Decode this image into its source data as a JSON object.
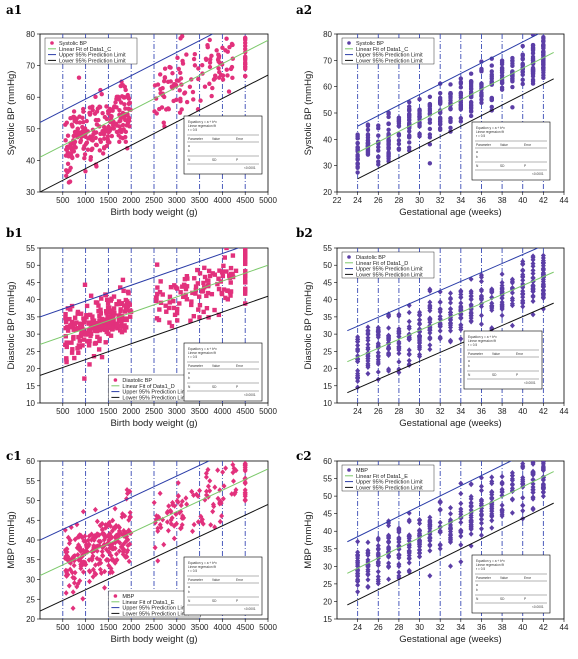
{
  "panel_labels": [
    "a1",
    "a2",
    "b1",
    "b2",
    "c1",
    "c2"
  ],
  "stats_text": {
    "line1": "Equation y = a + b*x",
    "line2": "Linear regression fit",
    "line3": "r = 0.5",
    "row_header": [
      "Parameter",
      "Value",
      "Error"
    ],
    "row_a": [
      "a",
      "",
      "",
      ""
    ],
    "row_b": [
      "b",
      "",
      "",
      ""
    ],
    "row_n": [
      "N",
      "SD",
      "P"
    ],
    "row_vals": [
      "",
      "",
      "<0.0001"
    ]
  },
  "chart_data": [
    {
      "id": "a1",
      "type": "scatter",
      "xlabel": "Birth body weight (g)",
      "ylabel": "Systolic BP (mmHg)",
      "xlim": [
        0,
        5000
      ],
      "ylim": [
        30,
        80
      ],
      "xticks": [
        500,
        1000,
        1500,
        2000,
        2500,
        3000,
        3500,
        4000,
        4500,
        5000
      ],
      "yticks": [
        30,
        40,
        50,
        60,
        70,
        80
      ],
      "series": [
        {
          "name": "Systolic BP",
          "role": "points",
          "marker": "circle"
        },
        {
          "name": "Linear Fit of Data1_C",
          "role": "fit",
          "line": [
            [
              0,
              41
            ],
            [
              5000,
              78
            ]
          ]
        },
        {
          "name": "Upper 95% Prediction Limit",
          "role": "upper",
          "line": [
            [
              0,
              52
            ],
            [
              5000,
              89
            ]
          ]
        },
        {
          "name": "Lower 95% Prediction Limit",
          "role": "lower",
          "line": [
            [
              0,
              30
            ],
            [
              5000,
              67
            ]
          ]
        }
      ],
      "legend": "top-left",
      "vlines": [
        500,
        1000,
        1500,
        2000,
        2500,
        3000,
        3500,
        4000,
        4500
      ]
    },
    {
      "id": "a2",
      "type": "scatter",
      "xlabel": "Gestational age (weeks)",
      "ylabel": "Systolic BP (mmHg)",
      "xlim": [
        22,
        44
      ],
      "ylim": [
        20,
        80
      ],
      "xticks": [
        22,
        24,
        26,
        28,
        30,
        32,
        34,
        36,
        38,
        40,
        42,
        44
      ],
      "yticks": [
        20,
        30,
        40,
        50,
        60,
        70,
        80
      ],
      "series": [
        {
          "name": "Systolic BP",
          "role": "points",
          "marker": "circle"
        },
        {
          "name": "Linear Fit of Data1_C",
          "role": "fit",
          "line": [
            [
              24,
              35
            ],
            [
              43,
              73
            ]
          ]
        },
        {
          "name": "Upper 95% Prediction Limit",
          "role": "upper",
          "line": [
            [
              24,
              45
            ],
            [
              43,
              83
            ]
          ]
        },
        {
          "name": "Lower 95% Prediction Limit",
          "role": "lower",
          "line": [
            [
              24,
              25
            ],
            [
              43,
              63
            ]
          ]
        }
      ],
      "legend": "top-left",
      "vlines": [
        24,
        26,
        28,
        30,
        32,
        34,
        36,
        38,
        40,
        42
      ]
    },
    {
      "id": "b1",
      "type": "scatter",
      "xlabel": "Birth body weight (g)",
      "ylabel": "Diastolic BP (mmHg)",
      "xlim": [
        0,
        5000
      ],
      "ylim": [
        10,
        55
      ],
      "xticks": [
        500,
        1000,
        1500,
        2000,
        2500,
        3000,
        3500,
        4000,
        4500,
        5000
      ],
      "yticks": [
        10,
        15,
        20,
        25,
        30,
        35,
        40,
        45,
        50,
        55
      ],
      "series": [
        {
          "name": "Diastolic BP",
          "role": "points",
          "marker": "square"
        },
        {
          "name": "Linear Fit of Data1_D",
          "role": "fit",
          "line": [
            [
              0,
              27
            ],
            [
              5000,
              50
            ]
          ]
        },
        {
          "name": "Upper 95% Prediction Limit",
          "role": "upper",
          "line": [
            [
              0,
              35
            ],
            [
              5000,
              58
            ]
          ]
        },
        {
          "name": "Lower 95% Prediction Limit",
          "role": "lower",
          "line": [
            [
              0,
              18
            ],
            [
              5000,
              41
            ]
          ]
        }
      ],
      "legend": "bottom",
      "vlines": [
        500,
        1000,
        1500,
        2000,
        2500,
        3000,
        3500,
        4000,
        4500
      ]
    },
    {
      "id": "b2",
      "type": "scatter",
      "xlabel": "Gestational age (weeks)",
      "ylabel": "Diastolic BP (mmHg)",
      "xlim": [
        22,
        44
      ],
      "ylim": [
        10,
        55
      ],
      "xticks": [
        24,
        26,
        28,
        30,
        32,
        34,
        36,
        38,
        40,
        42,
        44
      ],
      "yticks": [
        10,
        15,
        20,
        25,
        30,
        35,
        40,
        45,
        50,
        55
      ],
      "series": [
        {
          "name": "Diastolic BP",
          "role": "points",
          "marker": "diamond"
        },
        {
          "name": "Linear Fit of Data1_D",
          "role": "fit",
          "line": [
            [
              23,
              22
            ],
            [
              43,
              48
            ]
          ]
        },
        {
          "name": "Upper 95% Prediction Limit",
          "role": "upper",
          "line": [
            [
              23,
              31
            ],
            [
              43,
              57
            ]
          ]
        },
        {
          "name": "Lower 95% Prediction Limit",
          "role": "lower",
          "line": [
            [
              23,
              13
            ],
            [
              43,
              39
            ]
          ]
        }
      ],
      "legend": "top-left",
      "vlines": [
        24,
        26,
        28,
        30,
        32,
        34,
        36,
        38,
        40,
        42
      ]
    },
    {
      "id": "c1",
      "type": "scatter",
      "xlabel": "Birth body weight (g)",
      "ylabel": "MBP (mmHg)",
      "xlim": [
        0,
        5000
      ],
      "ylim": [
        20,
        60
      ],
      "xticks": [
        500,
        1000,
        1500,
        2000,
        2500,
        3000,
        3500,
        4000,
        4500,
        5000
      ],
      "yticks": [
        20,
        25,
        30,
        35,
        40,
        45,
        50,
        55,
        60
      ],
      "series": [
        {
          "name": "MBP",
          "role": "points",
          "marker": "diamond"
        },
        {
          "name": "Linear Fit of Data1_E",
          "role": "fit",
          "line": [
            [
              0,
              31
            ],
            [
              5000,
              58
            ]
          ]
        },
        {
          "name": "Upper 95% Prediction Limit",
          "role": "upper",
          "line": [
            [
              0,
              40
            ],
            [
              5000,
              67
            ]
          ]
        },
        {
          "name": "Lower 95% Prediction Limit",
          "role": "lower",
          "line": [
            [
              0,
              22
            ],
            [
              5000,
              49
            ]
          ]
        }
      ],
      "legend": "bottom",
      "vlines": [
        500,
        1000,
        1500,
        2000,
        2500,
        3000,
        3500,
        4000,
        4500
      ]
    },
    {
      "id": "c2",
      "type": "scatter",
      "xlabel": "Gestational age (weeks)",
      "ylabel": "MBP (mmHg)",
      "xlim": [
        22,
        44
      ],
      "ylim": [
        15,
        60
      ],
      "xticks": [
        24,
        26,
        28,
        30,
        32,
        34,
        36,
        38,
        40,
        42,
        44
      ],
      "yticks": [
        15,
        20,
        25,
        30,
        35,
        40,
        45,
        50,
        55,
        60
      ],
      "series": [
        {
          "name": "MBP",
          "role": "points",
          "marker": "diamond"
        },
        {
          "name": "Linear Fit of Data1_E",
          "role": "fit",
          "line": [
            [
              23,
              28
            ],
            [
              43,
              57
            ]
          ]
        },
        {
          "name": "Upper 95% Prediction Limit",
          "role": "upper",
          "line": [
            [
              23,
              37
            ],
            [
              43,
              66
            ]
          ]
        },
        {
          "name": "Lower 95% Prediction Limit",
          "role": "lower",
          "line": [
            [
              23,
              19
            ],
            [
              43,
              48
            ]
          ]
        }
      ],
      "legend": "top-left",
      "vlines": [
        24,
        26,
        28,
        30,
        32,
        34,
        36,
        38,
        40,
        42
      ]
    }
  ],
  "colors": {
    "pink": "#e2317c",
    "purple": "#5b3ea6",
    "fit": "#7cc96b",
    "upper": "#2b3da8",
    "lower": "#111111",
    "vline": "#3a4bb5"
  }
}
